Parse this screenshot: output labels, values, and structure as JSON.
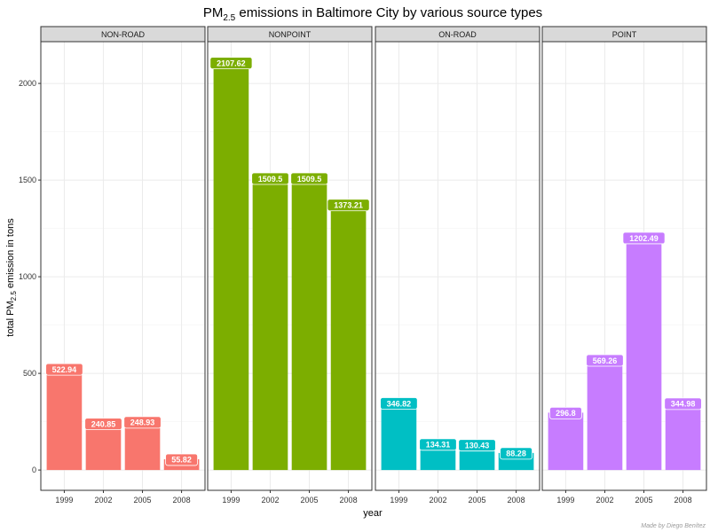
{
  "chart_data": {
    "type": "bar",
    "title_main": "PM",
    "title_sub": "2.5",
    "title_rest": " emissions in Baltimore City by various source types",
    "xlabel": "year",
    "ylabel_main": "total PM",
    "ylabel_sub": "2.5",
    "ylabel_rest": " emission in tons",
    "caption": "Made by Diego Benítez",
    "categories": [
      "1999",
      "2002",
      "2005",
      "2008"
    ],
    "ylim": [
      -105,
      2216
    ],
    "yticks": [
      0,
      500,
      1000,
      1500,
      2000
    ],
    "grid": true,
    "legend": "none",
    "panels": [
      {
        "name": "NON-ROAD",
        "color": "#F8766D",
        "values": [
          522.94,
          240.85,
          248.93,
          55.82
        ],
        "labels": [
          "522.94",
          "240.85",
          "248.93",
          "55.82"
        ]
      },
      {
        "name": "NONPOINT",
        "color": "#7CAE00",
        "values": [
          2107.62,
          1509.5,
          1509.5,
          1373.21
        ],
        "labels": [
          "2107.62",
          "1509.5",
          "1509.5",
          "1373.21"
        ]
      },
      {
        "name": "ON-ROAD",
        "color": "#00BFC4",
        "values": [
          346.82,
          134.31,
          130.43,
          88.28
        ],
        "labels": [
          "346.82",
          "134.31",
          "130.43",
          "88.28"
        ]
      },
      {
        "name": "POINT",
        "color": "#C77CFF",
        "values": [
          296.8,
          569.26,
          1202.49,
          344.98
        ],
        "labels": [
          "296.8",
          "569.26",
          "1202.49",
          "344.98"
        ]
      }
    ]
  }
}
